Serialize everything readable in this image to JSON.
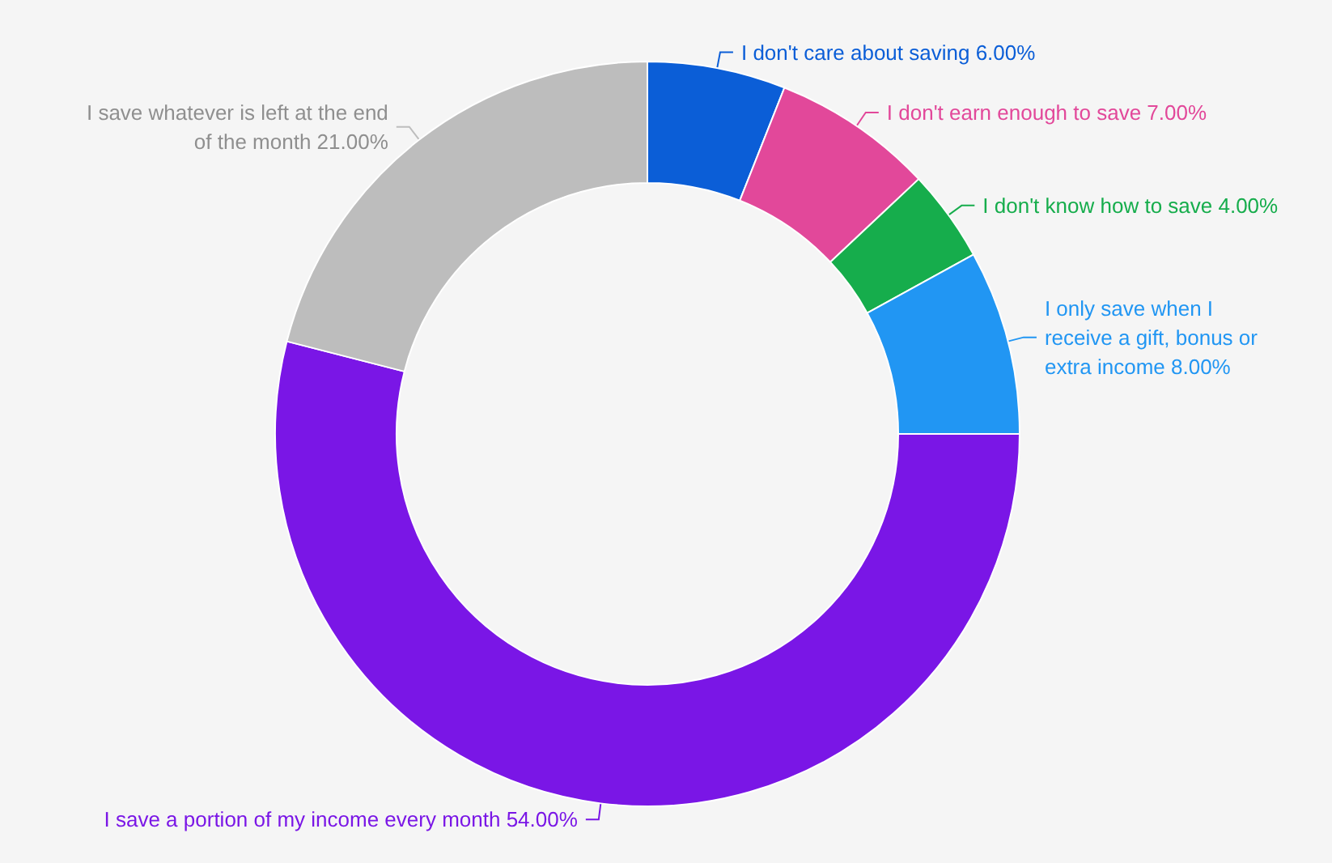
{
  "chart_data": {
    "type": "donut",
    "categories": [
      "I don't care about saving",
      "I don't earn enough to save",
      "I don't know how to save",
      "I only save when I receive a gift, bonus or extra income",
      "I save a portion of my income every month",
      "I save whatever is left at the end of the month"
    ],
    "values": [
      6,
      7,
      4,
      8,
      54,
      21
    ],
    "value_labels": [
      "6.00%",
      "7.00%",
      "4.00%",
      "8.00%",
      "54.00%",
      "21.00%"
    ],
    "colors": [
      "#0b5ed7",
      "#e2489a",
      "#16ad4c",
      "#2196f3",
      "#7a16e6",
      "#bdbdbd"
    ],
    "legend": false
  }
}
